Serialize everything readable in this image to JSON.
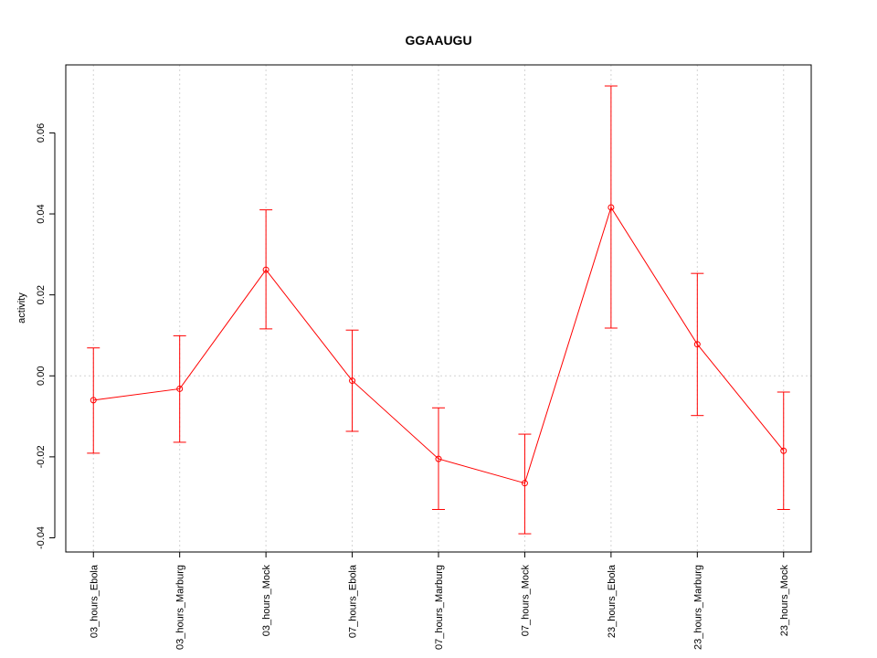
{
  "chart_data": {
    "type": "line",
    "title": "GGAAUGU",
    "xlabel": "",
    "ylabel": "activity",
    "categories": [
      "03_hours_Ebola",
      "03_hours_Marburg",
      "03_hours_Mock",
      "07_hours_Ebola",
      "07_hours_Marburg",
      "07_hours_Mock",
      "23_hours_Ebola",
      "23_hours_Marburg",
      "23_hours_Mock"
    ],
    "series": [
      {
        "values": [
          -0.006,
          -0.0032,
          0.0262,
          -0.0012,
          -0.0205,
          -0.0265,
          0.0416,
          0.0078,
          -0.0185
        ],
        "err_low": [
          -0.0191,
          -0.0164,
          0.0116,
          -0.0137,
          -0.033,
          -0.039,
          0.0118,
          -0.0098,
          -0.033
        ],
        "err_high": [
          0.0069,
          0.0099,
          0.041,
          0.0113,
          -0.0079,
          -0.0144,
          0.0716,
          0.0253,
          -0.004
        ],
        "color": "#ff0000"
      }
    ],
    "yticks": [
      -0.04,
      -0.02,
      0.0,
      0.02,
      0.04,
      0.06
    ],
    "ytick_labels": [
      "-0.04",
      "-0.02",
      "0.00",
      "0.02",
      "0.04",
      "0.06"
    ],
    "ylim": [
      -0.0435,
      0.0768
    ],
    "grid": true,
    "legend": "none"
  }
}
